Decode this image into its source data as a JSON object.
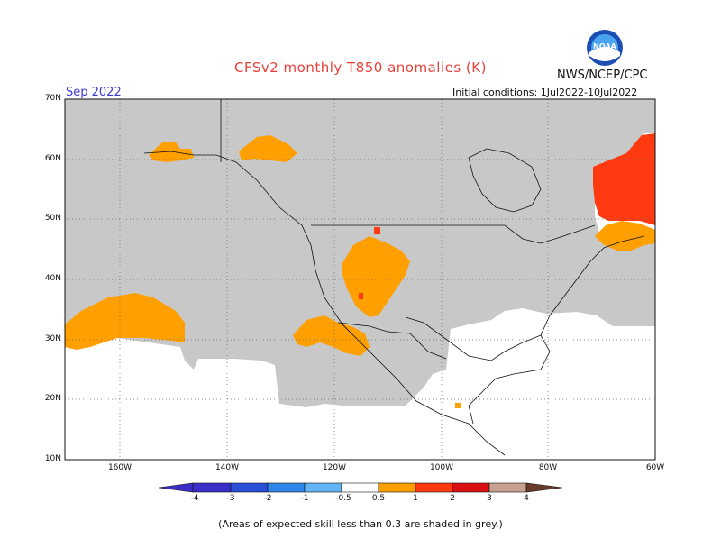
{
  "title": "CFSv2 monthly T850 anomalies (K)",
  "agency": "NWS/NCEP/CPC",
  "month": "Sep 2022",
  "initial_conditions": "Initial conditions: 1Jul2022-10Jul2022",
  "lat_labels": [
    "70N",
    "60N",
    "50N",
    "40N",
    "30N",
    "20N",
    "10N"
  ],
  "lon_labels": [
    "160W",
    "140W",
    "120W",
    "100W",
    "80W",
    "60W"
  ],
  "colorbar_labels": [
    "-4",
    "-3",
    "-2",
    "-1",
    "-0.5",
    "0.5",
    "1",
    "2",
    "3",
    "4"
  ],
  "colorbar_colors": [
    "#3a2ec8",
    "#2a4ed8",
    "#2f86e8",
    "#62b4f4",
    "#9fd2f8",
    "#ffffff",
    "#ff9f00",
    "#ff3a10",
    "#d81010",
    "#9a0a0a",
    "#c8a090",
    "#6a3a2a"
  ],
  "footnote": "(Areas of expected skill less than 0.3 are shaded in grey.)",
  "colors": {
    "grey_skill": "#c8c8c8",
    "anom_0_5_1": "#ff9f00",
    "anom_1_2": "#ff3a10",
    "anom_2_3": "#d81010"
  },
  "icons": {
    "logo": "noaa-logo"
  }
}
